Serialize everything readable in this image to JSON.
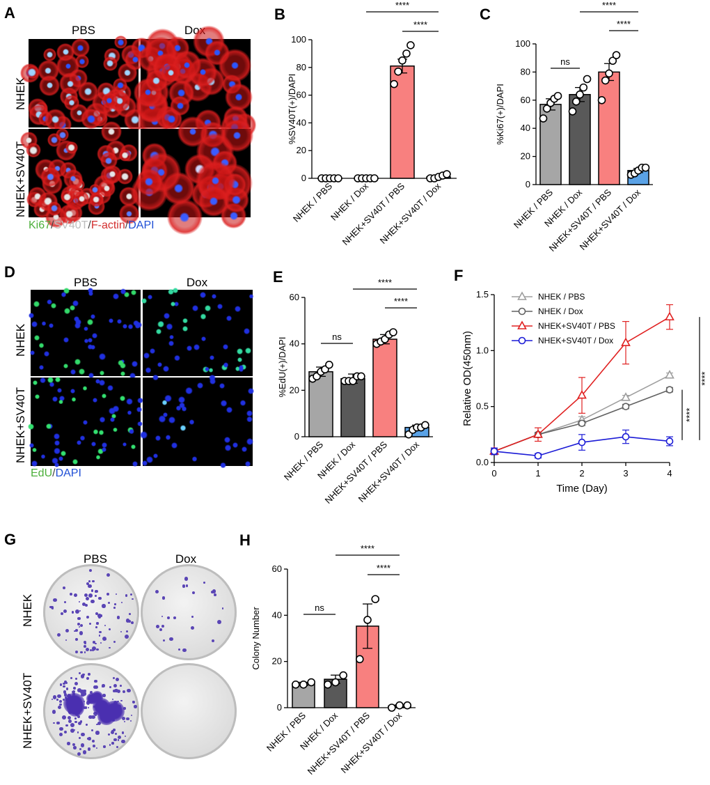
{
  "panels": {
    "A": {
      "letter": "A",
      "col_labels": [
        "PBS",
        "Dox"
      ],
      "row_labels": [
        "NHEK",
        "NHEK+SV40T"
      ],
      "legend": [
        {
          "text": "Ki67",
          "color": "#4caf3a"
        },
        {
          "text": "/",
          "color": "#444444"
        },
        {
          "text": "SV40T",
          "color": "#bdbdbd"
        },
        {
          "text": "/",
          "color": "#444444"
        },
        {
          "text": "F-actin",
          "color": "#d32f2f"
        },
        {
          "text": "/",
          "color": "#444444"
        },
        {
          "text": "DAPI",
          "color": "#1f4fd6"
        }
      ]
    },
    "D": {
      "letter": "D",
      "col_labels": [
        "PBS",
        "Dox"
      ],
      "row_labels": [
        "NHEK",
        "NHEK+SV40T"
      ],
      "legend": [
        {
          "text": "EdU",
          "color": "#4caf3a"
        },
        {
          "text": "/",
          "color": "#444444"
        },
        {
          "text": "DAPI",
          "color": "#1f4fd6"
        }
      ]
    },
    "G": {
      "letter": "G",
      "col_labels": [
        "PBS",
        "Dox"
      ],
      "row_labels": [
        "NHEK",
        "NHEK+SV40T"
      ]
    }
  },
  "chart_data": [
    {
      "id": "B",
      "letter": "B",
      "type": "bar",
      "categories": [
        "NHEK / PBS",
        "NHEK / Dox",
        "NHEK+SV40T / PBS",
        "NHEK+SV40T / Dox"
      ],
      "values": [
        0,
        0,
        81,
        1
      ],
      "errors": [
        0,
        0,
        5,
        0.5
      ],
      "points": [
        [
          0,
          0,
          0,
          0,
          0
        ],
        [
          0,
          0,
          0,
          0,
          0
        ],
        [
          68,
          77,
          85,
          90,
          96
        ],
        [
          0,
          0,
          1,
          2,
          3
        ]
      ],
      "colors": [
        "#a6a6a6",
        "#595959",
        "#f8807f",
        "#5aa2e6"
      ],
      "ylabel": "%SV40T(+)/DAPI",
      "ylim": [
        0,
        100
      ],
      "yticks": [
        0,
        20,
        40,
        60,
        80,
        100
      ],
      "sig": [
        {
          "from": 2,
          "to": 3,
          "text": "****"
        },
        {
          "from": 1,
          "to": 3,
          "text": "****"
        }
      ]
    },
    {
      "id": "C",
      "letter": "C",
      "type": "bar",
      "categories": [
        "NHEK / PBS",
        "NHEK / Dox",
        "NHEK+SV40T / PBS",
        "NHEK+SV40T / Dox"
      ],
      "values": [
        57,
        64,
        80,
        10
      ],
      "errors": [
        4,
        5,
        6,
        1.5
      ],
      "points": [
        [
          47,
          54,
          58,
          61,
          63
        ],
        [
          52,
          59,
          64,
          69,
          75
        ],
        [
          60,
          74,
          79,
          88,
          92
        ],
        [
          7,
          8,
          10,
          12,
          12
        ]
      ],
      "colors": [
        "#a6a6a6",
        "#595959",
        "#f8807f",
        "#5aa2e6"
      ],
      "ylabel": "%Ki67(+)/DAPI",
      "ylim": [
        0,
        100
      ],
      "yticks": [
        0,
        20,
        40,
        60,
        80,
        100
      ],
      "sig": [
        {
          "from": 0,
          "to": 1,
          "text": "ns"
        },
        {
          "from": 2,
          "to": 3,
          "text": "****"
        },
        {
          "from": 1,
          "to": 3,
          "text": "****"
        }
      ]
    },
    {
      "id": "E",
      "letter": "E",
      "type": "bar",
      "categories": [
        "NHEK / PBS",
        "NHEK / Dox",
        "NHEK+SV40T / PBS",
        "NHEK+SV40T / Dox"
      ],
      "values": [
        28,
        25,
        42,
        4
      ],
      "errors": [
        2,
        2,
        2,
        1
      ],
      "points": [
        [
          25,
          26,
          28,
          29,
          31
        ],
        [
          24,
          24,
          24,
          26,
          26
        ],
        [
          40,
          41,
          42,
          44,
          45
        ],
        [
          1,
          3,
          4,
          4,
          5
        ]
      ],
      "colors": [
        "#a6a6a6",
        "#595959",
        "#f8807f",
        "#5aa2e6"
      ],
      "ylabel": "%EdU(+)/DAPI",
      "ylim": [
        0,
        60
      ],
      "yticks": [
        0,
        20,
        40,
        60
      ],
      "sig": [
        {
          "from": 0,
          "to": 1,
          "text": "ns"
        },
        {
          "from": 2,
          "to": 3,
          "text": "****"
        },
        {
          "from": 1,
          "to": 3,
          "text": "****"
        }
      ]
    },
    {
      "id": "F",
      "letter": "F",
      "type": "line",
      "x": [
        0,
        1,
        2,
        3,
        4
      ],
      "xlabel": "Time (Day)",
      "ylabel": "Relative OD(450nm)",
      "xlim": [
        0,
        4
      ],
      "ylim": [
        0,
        1.5
      ],
      "xticks": [
        0,
        1,
        2,
        3,
        4
      ],
      "yticks": [
        0.0,
        0.5,
        1.0,
        1.5
      ],
      "series": [
        {
          "name": "NHEK / PBS",
          "values": [
            0.1,
            0.25,
            0.38,
            0.58,
            0.78
          ],
          "errors": [
            0.02,
            0.02,
            0.03,
            0.02,
            0.02
          ],
          "color": "#9e9e9e",
          "marker": "triangle"
        },
        {
          "name": "NHEK / Dox",
          "values": [
            0.1,
            0.25,
            0.35,
            0.5,
            0.65
          ],
          "errors": [
            0.02,
            0.02,
            0.02,
            0.02,
            0.02
          ],
          "color": "#616161",
          "marker": "circle"
        },
        {
          "name": "NHEK+SV40T / PBS",
          "values": [
            0.1,
            0.25,
            0.6,
            1.07,
            1.3
          ],
          "errors": [
            0.03,
            0.06,
            0.16,
            0.19,
            0.11
          ],
          "color": "#e02020",
          "marker": "triangle"
        },
        {
          "name": "NHEK+SV40T / Dox",
          "values": [
            0.1,
            0.06,
            0.18,
            0.23,
            0.19
          ],
          "errors": [
            0.03,
            0.02,
            0.07,
            0.06,
            0.04
          ],
          "color": "#1a1ad6",
          "marker": "circle"
        }
      ],
      "legend_position": "top-left",
      "sig": [
        {
          "text": "****",
          "y_from": 0.2,
          "y_to": 0.65
        },
        {
          "text": "****",
          "y_from": 0.2,
          "y_to": 1.3
        }
      ]
    },
    {
      "id": "H",
      "letter": "H",
      "type": "bar",
      "categories": [
        "NHEK / PBS",
        "NHEK / Dox",
        "NHEK+SV40T / PBS",
        "NHEK+SV40T / Dox"
      ],
      "values": [
        10.3,
        12.3,
        35.3,
        0.7
      ],
      "errors": [
        0.7,
        1.8,
        9.6,
        0.5
      ],
      "points": [
        [
          10,
          10,
          11
        ],
        [
          10,
          11,
          14
        ],
        [
          21,
          38,
          47
        ],
        [
          0,
          1,
          1
        ]
      ],
      "colors": [
        "#a6a6a6",
        "#595959",
        "#f8807f",
        "#5aa2e6"
      ],
      "ylabel": "Colony Number",
      "ylim": [
        0,
        60
      ],
      "yticks": [
        0,
        20,
        40,
        60
      ],
      "sig": [
        {
          "from": 0,
          "to": 1,
          "text": "ns"
        },
        {
          "from": 2,
          "to": 3,
          "text": "****"
        },
        {
          "from": 1,
          "to": 3,
          "text": "****"
        }
      ]
    }
  ]
}
